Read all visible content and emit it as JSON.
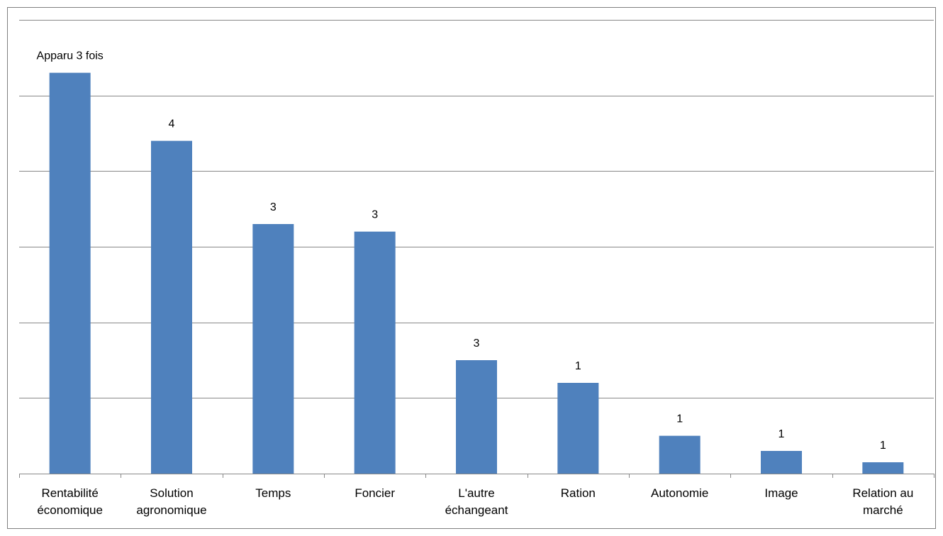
{
  "chart_data": {
    "type": "bar",
    "categories": [
      [
        "Rentabilité",
        "économique"
      ],
      [
        "Solution",
        "agronomique"
      ],
      [
        "Temps"
      ],
      [
        "Foncier"
      ],
      [
        "L'autre",
        "échangeant"
      ],
      [
        "Ration"
      ],
      [
        "Autonomie"
      ],
      [
        "Image"
      ],
      [
        "Relation au",
        "marché"
      ]
    ],
    "values": [
      53,
      44,
      33,
      32,
      15,
      12,
      5,
      3,
      1.5
    ],
    "data_labels": [
      "Apparu 3 fois",
      "4",
      "3",
      "3",
      "3",
      "1",
      "1",
      "1",
      "1"
    ],
    "title": "",
    "xlabel": "",
    "ylabel": "",
    "ylim": [
      0,
      60
    ],
    "gridlines": [
      10,
      20,
      30,
      40,
      50,
      60
    ],
    "y_tick_labels": false,
    "grid": true,
    "legend": "none",
    "colors": {
      "bar": "#4f81bd",
      "grid": "#888888",
      "axis": "#888888",
      "frame": "#7f7f7f"
    }
  }
}
